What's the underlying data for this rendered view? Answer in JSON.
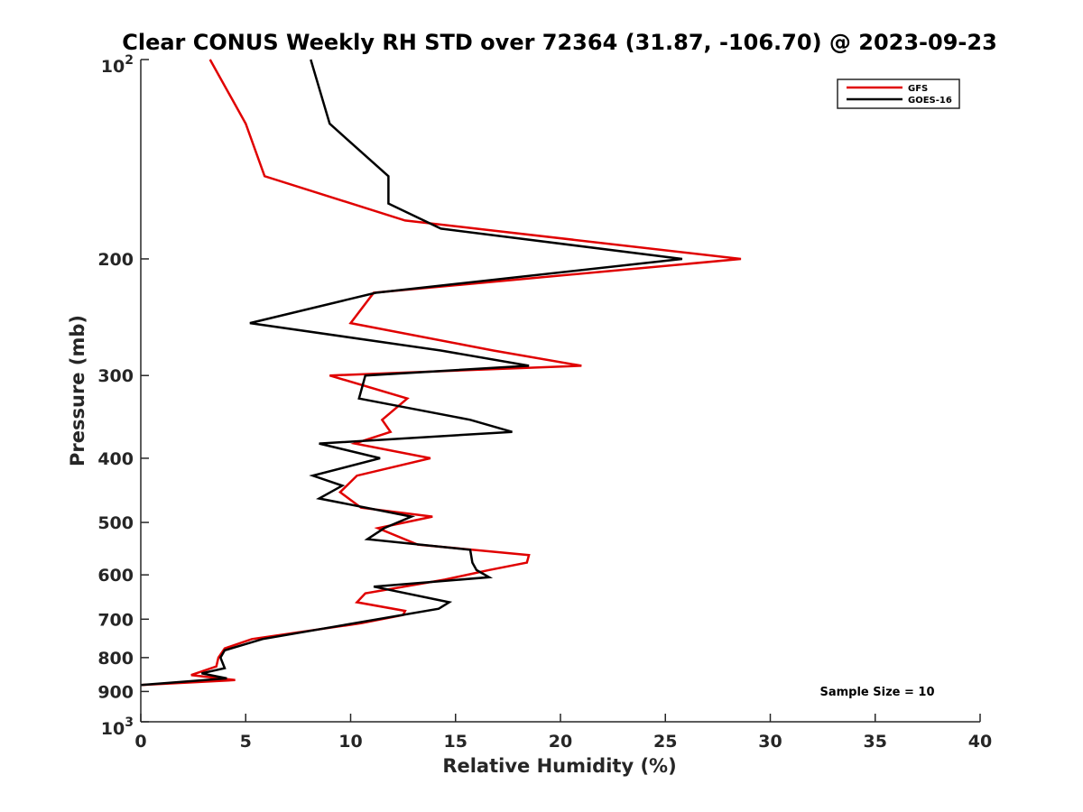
{
  "chart_data": {
    "type": "line",
    "title": "Clear CONUS Weekly RH STD over 72364 (31.87, -106.70) @ 2023-09-23",
    "xlabel": "Relative Humidity (%)",
    "ylabel": "Pressure (mb)",
    "xlim": [
      0,
      40
    ],
    "ylim": [
      100,
      1000
    ],
    "y_scale": "log",
    "y_reversed": true,
    "x_ticks": [
      0,
      5,
      10,
      15,
      20,
      25,
      30,
      35,
      40
    ],
    "y_ticks": [
      {
        "value": 100,
        "base": "10",
        "exp": "2"
      },
      {
        "value": 200,
        "label": "200"
      },
      {
        "value": 300,
        "label": "300"
      },
      {
        "value": 400,
        "label": "400"
      },
      {
        "value": 500,
        "label": "500"
      },
      {
        "value": 600,
        "label": "600"
      },
      {
        "value": 700,
        "label": "700"
      },
      {
        "value": 800,
        "label": "800"
      },
      {
        "value": 900,
        "label": "900"
      },
      {
        "value": 1000,
        "base": "10",
        "exp": "3"
      }
    ],
    "grid": false,
    "legend_position": "top-right",
    "series": [
      {
        "name": "GFS",
        "color": "#e00000",
        "points": [
          [
            3.3,
            100
          ],
          [
            5.0,
            125
          ],
          [
            5.9,
            150
          ],
          [
            12.6,
            175
          ],
          [
            28.6,
            200
          ],
          [
            11.1,
            225
          ],
          [
            10.0,
            250
          ],
          [
            16.8,
            275
          ],
          [
            21.0,
            290
          ],
          [
            9.0,
            300
          ],
          [
            12.7,
            325
          ],
          [
            11.5,
            350
          ],
          [
            11.9,
            365
          ],
          [
            10.2,
            380
          ],
          [
            13.8,
            400
          ],
          [
            10.3,
            425
          ],
          [
            9.5,
            450
          ],
          [
            10.5,
            475
          ],
          [
            13.9,
            490
          ],
          [
            11.3,
            510
          ],
          [
            13.2,
            540
          ],
          [
            18.5,
            560
          ],
          [
            18.4,
            575
          ],
          [
            16.6,
            590
          ],
          [
            14.5,
            610
          ],
          [
            10.7,
            640
          ],
          [
            10.3,
            660
          ],
          [
            12.6,
            680
          ],
          [
            12.5,
            690
          ],
          [
            10.5,
            710
          ],
          [
            5.3,
            750
          ],
          [
            4.0,
            775
          ],
          [
            3.7,
            800
          ],
          [
            3.6,
            825
          ],
          [
            2.4,
            850
          ],
          [
            4.5,
            865
          ],
          [
            0.0,
            880
          ]
        ]
      },
      {
        "name": "GOES-16",
        "color": "#000000",
        "points": [
          [
            8.1,
            100
          ],
          [
            9.0,
            125
          ],
          [
            11.8,
            150
          ],
          [
            11.8,
            165
          ],
          [
            14.3,
            180
          ],
          [
            25.8,
            200
          ],
          [
            11.2,
            225
          ],
          [
            5.2,
            250
          ],
          [
            14.3,
            275
          ],
          [
            18.5,
            290
          ],
          [
            10.7,
            300
          ],
          [
            10.4,
            325
          ],
          [
            15.7,
            350
          ],
          [
            17.7,
            365
          ],
          [
            8.5,
            380
          ],
          [
            11.4,
            400
          ],
          [
            8.2,
            425
          ],
          [
            9.6,
            440
          ],
          [
            8.5,
            460
          ],
          [
            12.9,
            490
          ],
          [
            11.6,
            510
          ],
          [
            10.8,
            530
          ],
          [
            15.7,
            550
          ],
          [
            15.8,
            575
          ],
          [
            16.0,
            590
          ],
          [
            16.6,
            605
          ],
          [
            11.1,
            625
          ],
          [
            14.7,
            660
          ],
          [
            14.2,
            675
          ],
          [
            5.8,
            750
          ],
          [
            4.0,
            780
          ],
          [
            3.8,
            800
          ],
          [
            4.0,
            830
          ],
          [
            2.9,
            845
          ],
          [
            4.1,
            860
          ],
          [
            0.0,
            880
          ]
        ]
      }
    ],
    "annotation": "Sample Size = 10"
  }
}
